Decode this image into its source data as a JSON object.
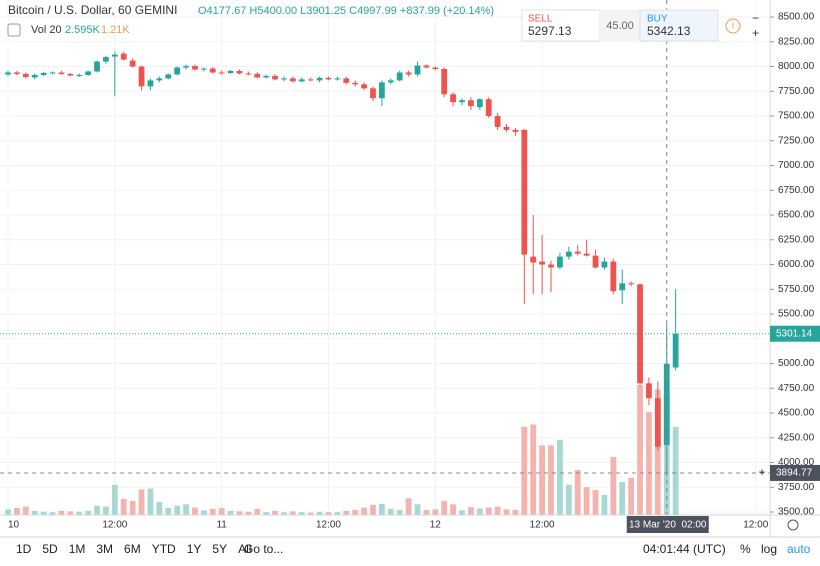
{
  "header": {
    "symbol": "Bitcoin / U.S. Dollar",
    "interval": "60",
    "exchange": "GEMINI",
    "ohlc_o": "O4177.67",
    "ohlc_h": "H5400.00",
    "ohlc_l": "L3901.25",
    "ohlc_c": "C4997.99",
    "change": "+837.99 (+20.14%)",
    "vol_label": "Vol 20",
    "vol_value": "2.595K",
    "vol_ma": "1.21K"
  },
  "trade": {
    "sell_label": "SELL",
    "sell_price": "5297.13",
    "spread": "45.00",
    "buy_label": "BUY",
    "buy_price": "5342.13",
    "info": "i"
  },
  "toolbar": {
    "ranges": [
      "1D",
      "5D",
      "1M",
      "3M",
      "6M",
      "YTD",
      "1Y",
      "5Y",
      "All"
    ],
    "goto": "Go to...",
    "clock": "04:01:44 (UTC)",
    "percent": "%",
    "log": "log",
    "auto": "auto"
  },
  "chart_data": {
    "type": "candlestick",
    "up_color": "#26a69a",
    "down_color": "#ef5350",
    "up_volume_color": "#a8d8d2",
    "down_volume_color": "#f5b3b0",
    "x": [
      0,
      1,
      2,
      3,
      4,
      5,
      6,
      7,
      8,
      9,
      10,
      11,
      12,
      13,
      14,
      15,
      16,
      17,
      18,
      19,
      20,
      21,
      22,
      23,
      24,
      25,
      26,
      27,
      28,
      29,
      30,
      31,
      32,
      33,
      34,
      35,
      36,
      37,
      38,
      39,
      40,
      41,
      42,
      43,
      44,
      45,
      46,
      47,
      48,
      49,
      50,
      51,
      52,
      53,
      54,
      55,
      56,
      57,
      58,
      59,
      60,
      61,
      62,
      63,
      64,
      65,
      66,
      67,
      68,
      69,
      70,
      71,
      72,
      73,
      74,
      75
    ],
    "open": [
      7920,
      7940,
      7925,
      7890,
      7915,
      7935,
      7940,
      7925,
      7910,
      7915,
      7950,
      8050,
      8100,
      8130,
      8060,
      8000,
      7800,
      7860,
      7880,
      7920,
      7990,
      8005,
      7970,
      7980,
      7940,
      7935,
      7955,
      7930,
      7925,
      7890,
      7905,
      7870,
      7880,
      7850,
      7870,
      7860,
      7885,
      7870,
      7880,
      7835,
      7820,
      7780,
      7680,
      7840,
      7860,
      7940,
      7920,
      8010,
      7990,
      7975,
      7720,
      7640,
      7660,
      7590,
      7670,
      7500,
      7390,
      7360,
      7360,
      6080,
      6030,
      6000,
      5970,
      6080,
      6130,
      6110,
      6090,
      5970,
      6030,
      5740,
      5810,
      5800,
      4800,
      4650,
      4177.67,
      4960
    ],
    "high": [
      7960,
      7955,
      7940,
      7930,
      7945,
      7950,
      7955,
      7935,
      7930,
      7960,
      8060,
      8110,
      8150,
      8150,
      8080,
      8010,
      7880,
      7900,
      7930,
      8000,
      8020,
      8020,
      7990,
      7995,
      7960,
      7965,
      7970,
      7950,
      7945,
      7920,
      7925,
      7900,
      7900,
      7890,
      7890,
      7900,
      7900,
      7900,
      7895,
      7860,
      7840,
      7800,
      7860,
      7880,
      7960,
      7960,
      8050,
      8020,
      8000,
      7990,
      7740,
      7680,
      7690,
      7680,
      7690,
      7530,
      7420,
      7380,
      7370,
      6500,
      6300,
      6040,
      6120,
      6180,
      6200,
      6250,
      6150,
      6070,
      6060,
      5950,
      5830,
      5810,
      4860,
      4820,
      5400,
      5750
    ],
    "low": [
      7900,
      7910,
      7880,
      7870,
      7905,
      7920,
      7915,
      7900,
      7895,
      7905,
      7940,
      8030,
      7700,
      8060,
      7990,
      7760,
      7760,
      7840,
      7870,
      7910,
      7970,
      7960,
      7950,
      7930,
      7920,
      7925,
      7920,
      7910,
      7880,
      7880,
      7860,
      7850,
      7840,
      7840,
      7850,
      7840,
      7860,
      7860,
      7820,
      7800,
      7760,
      7650,
      7600,
      7820,
      7850,
      7900,
      7900,
      7980,
      7960,
      7690,
      7600,
      7610,
      7560,
      7560,
      7480,
      7360,
      7340,
      7300,
      5600,
      5700,
      5700,
      5720,
      5950,
      6050,
      6090,
      6080,
      5960,
      5950,
      5700,
      5600,
      5780,
      4780,
      4580,
      4120,
      3901.25,
      4930
    ],
    "close": [
      7940,
      7925,
      7895,
      7915,
      7935,
      7940,
      7925,
      7910,
      7915,
      7950,
      8050,
      8095,
      8120,
      8070,
      8000,
      7800,
      7860,
      7880,
      7920,
      7990,
      8005,
      7970,
      7980,
      7940,
      7935,
      7955,
      7930,
      7925,
      7890,
      7905,
      7870,
      7880,
      7850,
      7870,
      7860,
      7885,
      7870,
      7880,
      7835,
      7820,
      7780,
      7680,
      7840,
      7860,
      7940,
      7920,
      8010,
      7990,
      7975,
      7720,
      7640,
      7660,
      7600,
      7670,
      7500,
      7390,
      7360,
      7340,
      6100,
      6020,
      6000,
      5970,
      6080,
      6130,
      6110,
      6090,
      5970,
      6030,
      5730,
      5810,
      5800,
      4800,
      4650,
      4160,
      4997.99,
      5301.14
    ],
    "volume": [
      120,
      150,
      180,
      90,
      70,
      60,
      90,
      80,
      70,
      90,
      200,
      180,
      650,
      350,
      300,
      550,
      570,
      280,
      150,
      200,
      230,
      160,
      100,
      130,
      150,
      90,
      80,
      70,
      130,
      60,
      90,
      60,
      80,
      60,
      50,
      70,
      60,
      60,
      90,
      110,
      160,
      220,
      240,
      130,
      110,
      360,
      230,
      110,
      120,
      300,
      230,
      100,
      170,
      140,
      160,
      180,
      120,
      110,
      1900,
      1950,
      1500,
      1500,
      1620,
      650,
      970,
      600,
      540,
      430,
      1250,
      710,
      800,
      2800,
      2220,
      2700,
      2595,
      1900
    ],
    "xlim": [
      -0.9,
      85.6
    ],
    "ylim": [
      3470,
      8672
    ],
    "xticks": [
      {
        "value": 0,
        "label": "10"
      },
      {
        "value": 12,
        "label": "12:00"
      },
      {
        "value": 24,
        "label": "11"
      },
      {
        "value": 36,
        "label": "12:00"
      },
      {
        "value": 48,
        "label": "12"
      },
      {
        "value": 60,
        "label": "12:00"
      },
      {
        "value": 84,
        "label": "12:00"
      }
    ],
    "yticks": [
      {
        "value": 3500,
        "label": "3500.00"
      },
      {
        "value": 3750,
        "label": "3750.00"
      },
      {
        "value": 4000,
        "label": "4000.00"
      },
      {
        "value": 4250,
        "label": "4250.00"
      },
      {
        "value": 4500,
        "label": "4500.00"
      },
      {
        "value": 4750,
        "label": "4750.00"
      },
      {
        "value": 5000,
        "label": "5000.00"
      },
      {
        "value": 5250,
        "label": "5250.00"
      },
      {
        "value": 5500,
        "label": "5500.00"
      },
      {
        "value": 5750,
        "label": "5750.00"
      },
      {
        "value": 6000,
        "label": "6000.00"
      },
      {
        "value": 6250,
        "label": "6250.00"
      },
      {
        "value": 6500,
        "label": "6500.00"
      },
      {
        "value": 6750,
        "label": "6750.00"
      },
      {
        "value": 7000,
        "label": "7000.00"
      },
      {
        "value": 7250,
        "label": "7250.00"
      },
      {
        "value": 7500,
        "label": "7500.00"
      },
      {
        "value": 7750,
        "label": "7750.00"
      },
      {
        "value": 8000,
        "label": "8000.00"
      },
      {
        "value": 8250,
        "label": "8250.00"
      },
      {
        "value": 8500,
        "label": "8500.00"
      }
    ],
    "grid": true,
    "crosshair": {
      "x": 74,
      "price": 3894.77,
      "time_label": "13 Mar '20  02:00"
    }
  }
}
